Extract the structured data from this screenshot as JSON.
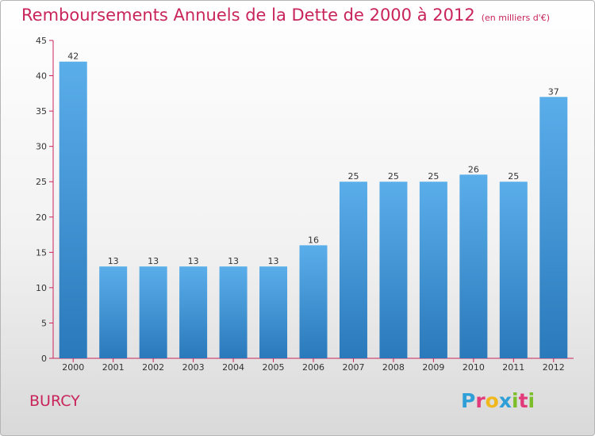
{
  "header": {
    "title": "Remboursements Annuels de la Dette de 2000 à 2012",
    "unit": "(en milliers d'€)"
  },
  "footer": {
    "commune": "BURCY",
    "brand": {
      "letters": [
        "P",
        "r",
        "o",
        "x",
        "i",
        "t",
        "i"
      ],
      "colors": [
        "#2f9fd8",
        "#e23b7b",
        "#f0b81c",
        "#2f9fd8",
        "#7cbd2a",
        "#e23b7b",
        "#7cbd2a"
      ]
    }
  },
  "chart_data": {
    "type": "bar",
    "categories": [
      "2000",
      "2001",
      "2002",
      "2003",
      "2004",
      "2005",
      "2006",
      "2007",
      "2008",
      "2009",
      "2010",
      "2011",
      "2012"
    ],
    "values": [
      42,
      13,
      13,
      13,
      13,
      13,
      16,
      25,
      25,
      25,
      26,
      25,
      37
    ],
    "title": "Remboursements Annuels de la Dette de 2000 à 2012",
    "ylim": [
      0,
      45
    ],
    "yticks": [
      0,
      5,
      10,
      15,
      20,
      25,
      30,
      35,
      40,
      45
    ],
    "grid": false,
    "legend": "none",
    "colors": {
      "bar_top": "#5aaeea",
      "bar_bottom": "#2a79bb",
      "axis": "#c8245a",
      "title": "#c8245a"
    }
  }
}
